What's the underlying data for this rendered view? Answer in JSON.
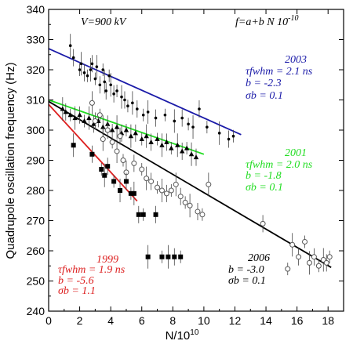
{
  "chart_data": {
    "type": "scatter",
    "title": "",
    "xlabel": "N/10",
    "xlabel_exp": "10",
    "ylabel": "Quadrupole oscillation frequency (Hz)",
    "xlim": [
      0,
      19
    ],
    "ylim": [
      240,
      340
    ],
    "xticks": [
      0,
      2,
      4,
      6,
      8,
      10,
      12,
      14,
      16,
      18
    ],
    "yticks": [
      240,
      250,
      260,
      270,
      280,
      290,
      300,
      310,
      320,
      330,
      340
    ],
    "grid": false,
    "top_annotations": {
      "voltage": "V=900 kV",
      "formula": "f=a+b N 10",
      "formula_exp": "-10"
    },
    "series": [
      {
        "name": "2003",
        "marker": "small-dot",
        "color": "#000000",
        "fit_color": "#1a1aa8",
        "fit": {
          "x": [
            0,
            12.4
          ],
          "y": [
            327.0,
            298.5
          ]
        },
        "label_year": "2003",
        "label_tau": "τfwhm = 2.1 ns",
        "label_b": "b = -2.3",
        "label_sb": "σb = 0.1",
        "points": [
          [
            1.4,
            328
          ],
          [
            1.6,
            324
          ],
          [
            2.0,
            320
          ],
          [
            2.1,
            322
          ],
          [
            2.3,
            319
          ],
          [
            2.5,
            318
          ],
          [
            2.7,
            320
          ],
          [
            2.8,
            322
          ],
          [
            3.0,
            317
          ],
          [
            3.1,
            321
          ],
          [
            3.3,
            315
          ],
          [
            3.5,
            320
          ],
          [
            3.6,
            316
          ],
          [
            3.7,
            313
          ],
          [
            3.9,
            318
          ],
          [
            4.0,
            315
          ],
          [
            4.2,
            312
          ],
          [
            4.4,
            313
          ],
          [
            4.7,
            311
          ],
          [
            4.9,
            310
          ],
          [
            5.1,
            308
          ],
          [
            5.4,
            309
          ],
          [
            5.7,
            307
          ],
          [
            6.1,
            305
          ],
          [
            6.4,
            306
          ],
          [
            6.9,
            304
          ],
          [
            7.5,
            305
          ],
          [
            8.1,
            303
          ],
          [
            8.6,
            304
          ],
          [
            9.0,
            302
          ],
          [
            9.3,
            301
          ],
          [
            9.7,
            307
          ],
          [
            10.2,
            301
          ],
          [
            11.0,
            299
          ],
          [
            11.6,
            297
          ],
          [
            11.9,
            298
          ]
        ]
      },
      {
        "name": "2001",
        "marker": "triangle",
        "color": "#000000",
        "fit_color": "#22dd22",
        "fit": {
          "x": [
            0,
            10.0
          ],
          "y": [
            310.0,
            292.0
          ]
        },
        "label_year": "2001",
        "label_tau": "τfwhm = 2.0 ns",
        "label_b": "b = -1.8",
        "label_sb": "σb = 0.1",
        "points": [
          [
            0.9,
            307
          ],
          [
            1.1,
            306
          ],
          [
            1.4,
            305
          ],
          [
            1.7,
            304
          ],
          [
            2.0,
            305
          ],
          [
            2.3,
            303
          ],
          [
            2.6,
            304
          ],
          [
            2.9,
            302
          ],
          [
            3.2,
            303
          ],
          [
            3.5,
            301
          ],
          [
            3.8,
            302
          ],
          [
            4.1,
            300
          ],
          [
            4.4,
            301
          ],
          [
            4.7,
            299
          ],
          [
            5.0,
            300
          ],
          [
            5.3,
            298
          ],
          [
            5.6,
            299
          ],
          [
            6.0,
            297
          ],
          [
            6.3,
            298
          ],
          [
            6.6,
            296
          ],
          [
            7.0,
            297
          ],
          [
            7.3,
            295
          ],
          [
            7.6,
            296
          ],
          [
            7.9,
            294
          ],
          [
            8.3,
            295
          ],
          [
            8.6,
            293
          ],
          [
            8.9,
            294
          ],
          [
            9.2,
            292
          ],
          [
            9.5,
            291
          ]
        ]
      },
      {
        "name": "2006",
        "marker": "open-circle",
        "color": "#000000",
        "fit_color": "#000000",
        "fit": {
          "x": [
            0,
            18.2
          ],
          "y": [
            309.5,
            254.5
          ]
        },
        "label_year": "2006",
        "label_b": "b = -3.0",
        "label_sb": "σb = 0.1",
        "points": [
          [
            2.8,
            309
          ],
          [
            3.0,
            303
          ],
          [
            3.3,
            305
          ],
          [
            3.5,
            297
          ],
          [
            3.8,
            300
          ],
          [
            4.1,
            296
          ],
          [
            4.4,
            293
          ],
          [
            4.6,
            298
          ],
          [
            4.8,
            290
          ],
          [
            5.0,
            286
          ],
          [
            5.5,
            289
          ],
          [
            6.0,
            287
          ],
          [
            6.3,
            284
          ],
          [
            6.6,
            283
          ],
          [
            7.0,
            281
          ],
          [
            7.3,
            280
          ],
          [
            7.6,
            279
          ],
          [
            7.9,
            280
          ],
          [
            8.2,
            282
          ],
          [
            8.5,
            278
          ],
          [
            8.8,
            276
          ],
          [
            9.1,
            275
          ],
          [
            9.6,
            273
          ],
          [
            9.9,
            272
          ],
          [
            10.3,
            282
          ],
          [
            13.8,
            269
          ],
          [
            15.4,
            254
          ],
          [
            15.7,
            262
          ],
          [
            16.1,
            258
          ],
          [
            16.5,
            263
          ],
          [
            16.8,
            256
          ],
          [
            17.1,
            258
          ],
          [
            17.4,
            255
          ],
          [
            17.7,
            257
          ],
          [
            17.9,
            256
          ],
          [
            18.1,
            258
          ]
        ]
      },
      {
        "name": "1999",
        "marker": "filled-square",
        "color": "#000000",
        "fit_color": "#dd2020",
        "fit": {
          "x": [
            0,
            5.7
          ],
          "y": [
            308.5,
            276.5
          ]
        },
        "label_year": "1999",
        "label_tau": "τfwhm = 1.9 ns",
        "label_b": "b = -5.6",
        "label_sb": "σb = 1.1",
        "points": [
          [
            1.6,
            295
          ],
          [
            2.8,
            292
          ],
          [
            3.4,
            287
          ],
          [
            3.6,
            285
          ],
          [
            3.8,
            288
          ],
          [
            4.2,
            283
          ],
          [
            4.6,
            280
          ],
          [
            5.0,
            283
          ],
          [
            5.3,
            279
          ],
          [
            5.5,
            279
          ],
          [
            5.8,
            272
          ],
          [
            6.1,
            272
          ],
          [
            6.4,
            258
          ],
          [
            6.9,
            272
          ],
          [
            7.3,
            258
          ],
          [
            7.7,
            258
          ],
          [
            8.1,
            258
          ],
          [
            8.5,
            258
          ]
        ]
      }
    ]
  }
}
